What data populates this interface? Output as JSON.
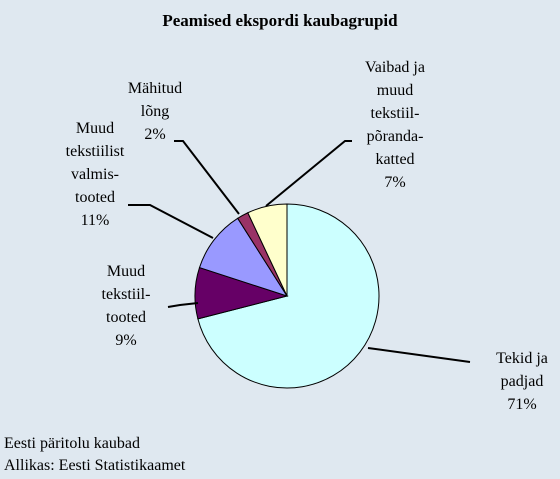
{
  "chart_data": {
    "type": "pie",
    "title": "Peamised ekspordi kaubagrupid",
    "categories": [
      "Tekid ja\npadjad",
      "Muud\ntekstiil-\ntooted",
      "Muud\ntekstiilist\nvalmis-\ntooted",
      "Mähitud\nlõng",
      "Vaibad ja\nmuud\ntekstiil-\npõranda-\nkatted"
    ],
    "values": [
      71,
      9,
      11,
      2,
      7
    ],
    "value_labels": [
      "71%",
      "9%",
      "11%",
      "2%",
      "7%"
    ],
    "colors": [
      "#ccffff",
      "#660066",
      "#9999ff",
      "#993366",
      "#ffffcc"
    ],
    "notes": [
      "Eesti päritolu kaubad",
      "Allikas: Eesti Statistikaamet"
    ]
  }
}
